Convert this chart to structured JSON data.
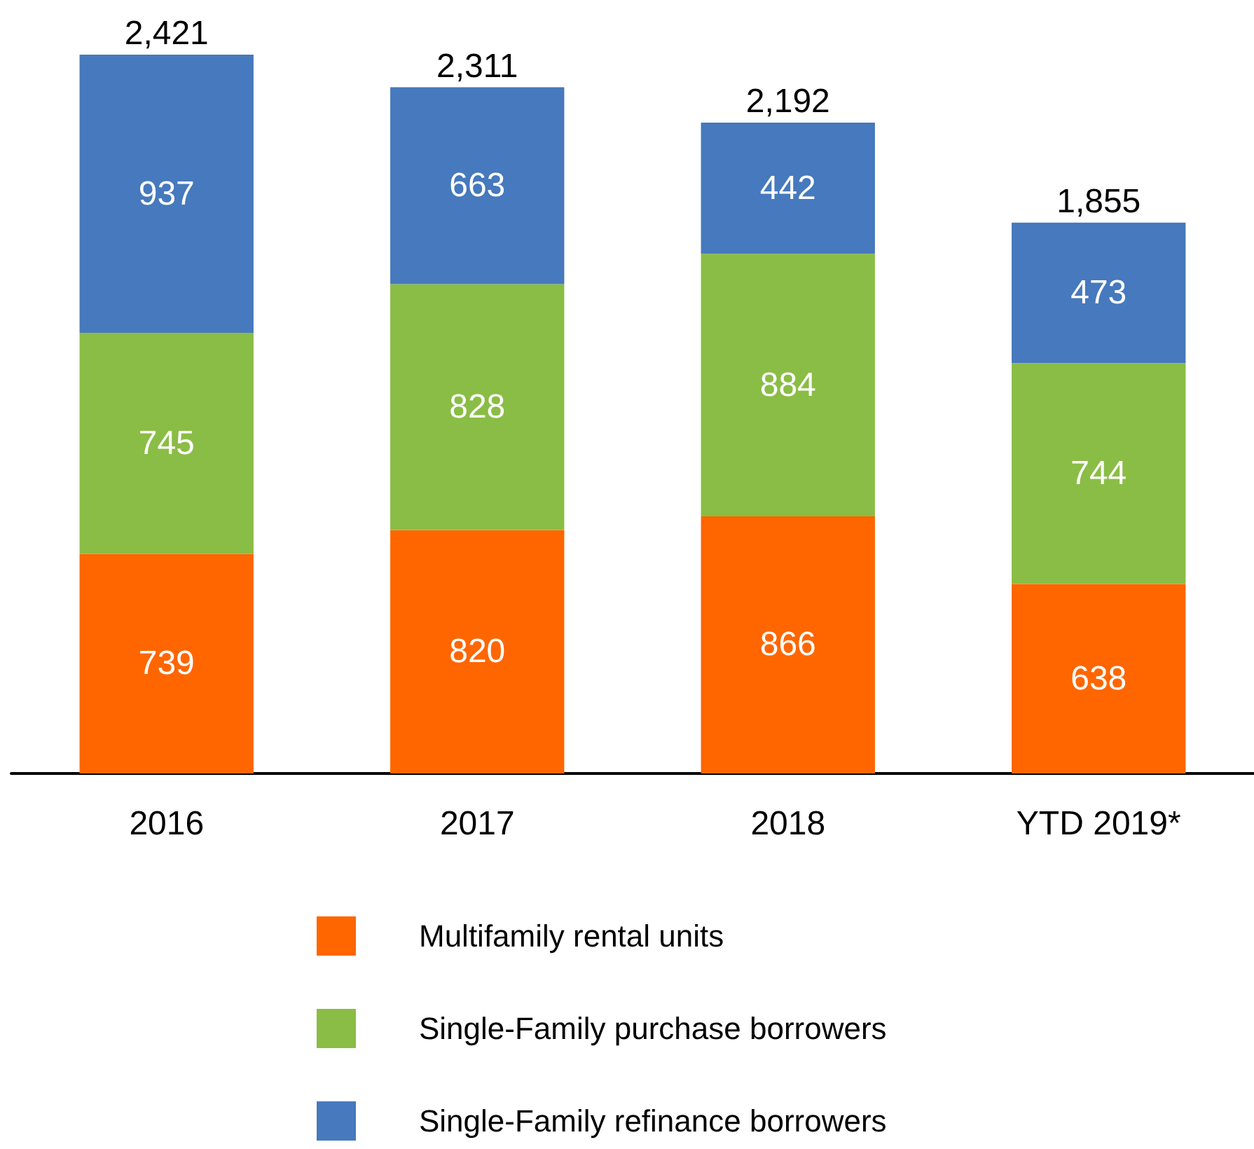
{
  "chart_data": {
    "type": "bar",
    "categories": [
      "2016",
      "2017",
      "2018",
      "YTD 2019*"
    ],
    "series": [
      {
        "name": "Multifamily rental units",
        "color": "#ff6600",
        "values": [
          739,
          820,
          866,
          638
        ]
      },
      {
        "name": "Single-Family purchase borrowers",
        "color": "#8abd45",
        "values": [
          745,
          828,
          884,
          744
        ]
      },
      {
        "name": "Single-Family refinance borrowers",
        "color": "#4679bd",
        "values": [
          937,
          663,
          442,
          473
        ]
      }
    ],
    "stacked": true,
    "data_labels": true,
    "totals": [
      "2,421",
      "2,311",
      "2,192",
      "1,855"
    ],
    "legend": "bottom"
  }
}
